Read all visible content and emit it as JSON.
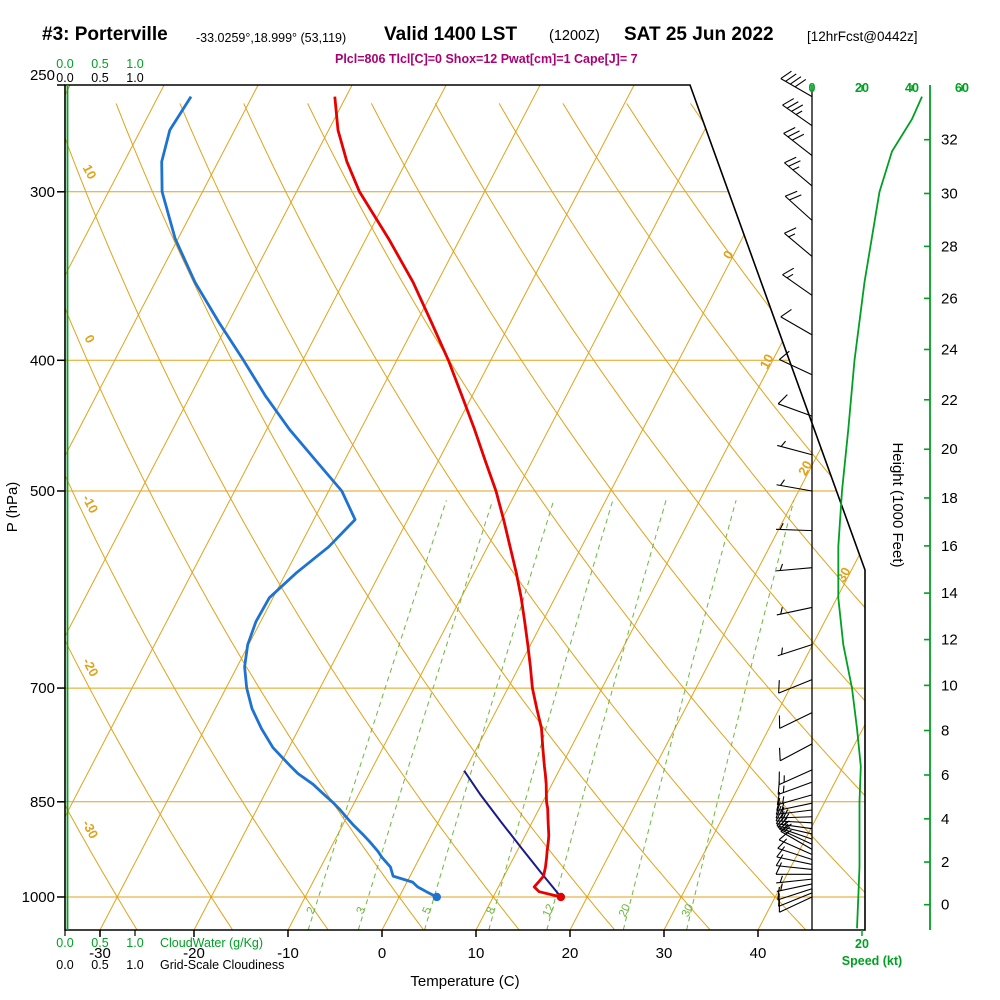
{
  "header": {
    "station": "#3: Porterville",
    "coords": "-33.0259°,18.999° (53,119)",
    "valid_main": "Valid 1400 LST",
    "valid_zulu": "(1200Z)",
    "valid_date": "SAT 25 Jun 2022",
    "forecast_tag": "[12hrFcst@0442z]",
    "indices": "Plcl=806 Tlcl[C]=0 Shox=12 Pwat[cm]=1 Cape[J]= 7"
  },
  "axis_labels": {
    "pressure": "P (hPa)",
    "temperature": "Temperature (C)",
    "height": "Height (1000 Feet)",
    "speed": "Speed (kt)",
    "cloudwater": "CloudWater (g/Kg)",
    "cloudiness": "Grid-Scale Cloudiness"
  },
  "scales": {
    "pressure_ticks": [
      250,
      300,
      400,
      500,
      700,
      850,
      1000
    ],
    "temp_ticks": [
      -30,
      -20,
      -10,
      0,
      10,
      20,
      30,
      40
    ],
    "height_ticks": [
      0,
      2,
      4,
      6,
      8,
      10,
      12,
      14,
      16,
      18,
      20,
      22,
      24,
      26,
      28,
      30,
      32
    ],
    "speed_ticks": [
      0,
      20,
      40,
      60
    ],
    "speed_bottom_tick": 20,
    "cloud_ticks": [
      "0.0",
      "0.5",
      "1.0"
    ],
    "adiabat_labels": [
      10,
      0,
      -10,
      -20,
      -30
    ],
    "isotherm_labels": [
      0,
      10,
      20,
      30
    ],
    "mixing_ratio_labels": [
      2,
      3,
      5,
      8,
      12,
      20,
      30
    ]
  },
  "chart_data": {
    "type": "line",
    "title": "Skew-T log-P sounding, Porterville, valid 1400 LST SAT 25 Jun 2022",
    "pressure_hPa": [
      1000,
      991,
      983,
      975,
      965,
      950,
      935,
      925,
      910,
      900,
      885,
      875,
      860,
      850,
      835,
      825,
      810,
      800,
      775,
      750,
      725,
      700,
      675,
      650,
      625,
      600,
      575,
      550,
      525,
      500,
      475,
      450,
      425,
      400,
      375,
      350,
      325,
      300,
      285,
      270,
      255
    ],
    "temperature_C": [
      17.2,
      14.6,
      13.8,
      14.0,
      14.2,
      13.9,
      13.5,
      13.2,
      12.8,
      12.5,
      11.9,
      11.5,
      10.9,
      10.4,
      9.8,
      9.4,
      8.7,
      8.2,
      7.0,
      5.8,
      4.2,
      2.6,
      1.2,
      -0.3,
      -1.9,
      -3.6,
      -5.5,
      -7.6,
      -9.8,
      -12.2,
      -15.0,
      -17.9,
      -21.1,
      -24.5,
      -28.4,
      -32.6,
      -37.6,
      -43.3,
      -46.3,
      -49.0,
      -51.2
    ],
    "dewpoint_C": [
      4.0,
      2.6,
      1.4,
      0.6,
      -1.8,
      -2.6,
      -4.0,
      -4.8,
      -6.2,
      -7.2,
      -8.8,
      -9.8,
      -11.3,
      -12.4,
      -14.2,
      -15.4,
      -17.6,
      -18.8,
      -21.7,
      -24.0,
      -26.1,
      -27.8,
      -29.2,
      -30.1,
      -30.5,
      -30.4,
      -28.9,
      -26.9,
      -25.6,
      -28.6,
      -33.0,
      -37.6,
      -42.0,
      -46.3,
      -51.0,
      -55.8,
      -60.3,
      -64.3,
      -66.0,
      -66.9,
      -66.5
    ],
    "parcel": {
      "pressure_hPa": [
        1000,
        960,
        920,
        880,
        840,
        806
      ],
      "temperature_C": [
        17.2,
        13.8,
        10.3,
        6.7,
        3.0,
        -0.1
      ]
    },
    "wind_barbs": [
      [
        255,
        300,
        40
      ],
      [
        268,
        305,
        35
      ],
      [
        282,
        308,
        30
      ],
      [
        297,
        310,
        25
      ],
      [
        315,
        312,
        20
      ],
      [
        335,
        310,
        15
      ],
      [
        358,
        305,
        15
      ],
      [
        383,
        300,
        10
      ],
      [
        410,
        295,
        10
      ],
      [
        440,
        290,
        10
      ],
      [
        470,
        285,
        5
      ],
      [
        500,
        280,
        5
      ],
      [
        535,
        272,
        5
      ],
      [
        570,
        265,
        5
      ],
      [
        610,
        258,
        5
      ],
      [
        650,
        252,
        5
      ],
      [
        690,
        248,
        10
      ],
      [
        730,
        244,
        10
      ],
      [
        770,
        242,
        10
      ],
      [
        805,
        246,
        15
      ],
      [
        822,
        250,
        15
      ],
      [
        840,
        254,
        15
      ],
      [
        852,
        258,
        15
      ],
      [
        862,
        263,
        18
      ],
      [
        872,
        268,
        18
      ],
      [
        881,
        273,
        20
      ],
      [
        890,
        278,
        20
      ],
      [
        898,
        283,
        18
      ],
      [
        906,
        289,
        18
      ],
      [
        914,
        295,
        15
      ],
      [
        922,
        300,
        15
      ],
      [
        930,
        294,
        12
      ],
      [
        938,
        288,
        12
      ],
      [
        946,
        282,
        10
      ],
      [
        954,
        276,
        10
      ],
      [
        962,
        270,
        10
      ],
      [
        970,
        264,
        8
      ],
      [
        978,
        258,
        8
      ],
      [
        986,
        252,
        10
      ],
      [
        993,
        248,
        10
      ],
      [
        1000,
        245,
        12
      ]
    ],
    "speed_profile": {
      "pressure_hPa": [
        1055,
        1000,
        950,
        900,
        850,
        800,
        750,
        700,
        650,
        600,
        550,
        500,
        450,
        400,
        350,
        300,
        280,
        265,
        255
      ],
      "knots": [
        18,
        18.5,
        19,
        19,
        19,
        19.5,
        18,
        16,
        12.5,
        10.5,
        10.5,
        12,
        14.5,
        17,
        21,
        27,
        32,
        40,
        44
      ]
    },
    "cloud_water_gkg": 0.0
  },
  "colors": {
    "grid_orange": "#e2a219",
    "mixing_green": "#6cb83c",
    "axis_green": "#00a023",
    "temperature_red": "#e60000",
    "dewpoint_blue": "#1e73d2",
    "parcel_navy": "#1a1a8c",
    "magenta": "#aa0077"
  }
}
